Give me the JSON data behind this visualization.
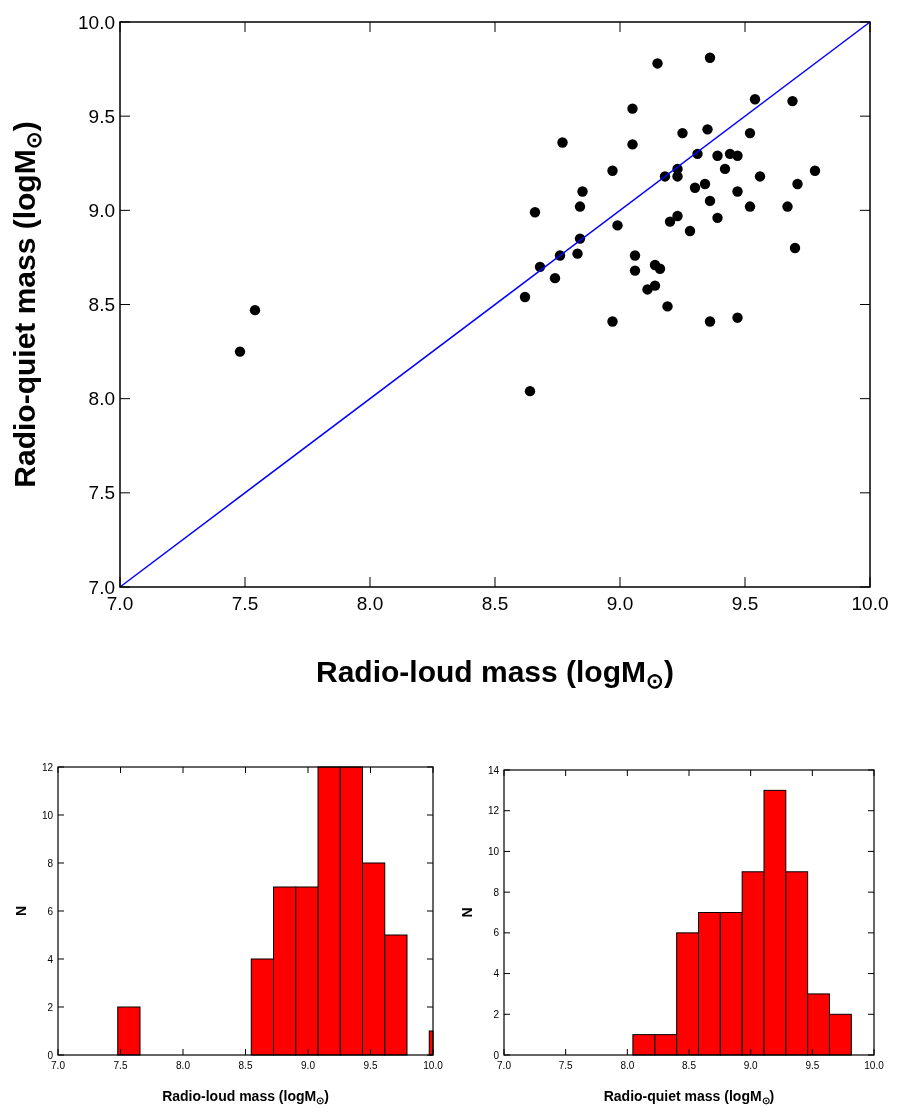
{
  "chart_data": [
    {
      "type": "scatter",
      "xlabel": "Radio-loud mass (logM$_{⊙}$)",
      "ylabel": "Radio-quiet mass (logM$_{⊙}$)",
      "xlim": [
        7,
        10
      ],
      "ylim": [
        7,
        10
      ],
      "xticks": [
        {
          "value": 7,
          "label": "7.0"
        },
        {
          "value": 7.5,
          "label": "7.5"
        },
        {
          "value": 8,
          "label": "8.0"
        },
        {
          "value": 8.5,
          "label": "8.5"
        },
        {
          "value": 9,
          "label": "9.0"
        },
        {
          "value": 9.5,
          "label": "9.5"
        },
        {
          "value": 10,
          "label": "10.0"
        }
      ],
      "yticks": [
        {
          "value": 7,
          "label": "7.0"
        },
        {
          "value": 7.5,
          "label": "7.5"
        },
        {
          "value": 8,
          "label": "8.0"
        },
        {
          "value": 8.5,
          "label": "8.5"
        },
        {
          "value": 9,
          "label": "9.0"
        },
        {
          "value": 9.5,
          "label": "9.5"
        },
        {
          "value": 10,
          "label": "10.0"
        }
      ],
      "grid": false,
      "series": [
        {
          "type": "scatter",
          "color": "#000000",
          "marker": "circle",
          "x": [
            9.15,
            9.36,
            9.54,
            9.69,
            9.05,
            9.25,
            9.35,
            9.52,
            8.77,
            9.05,
            9.31,
            9.39,
            9.44,
            9.47,
            8.97,
            9.23,
            9.18,
            9.23,
            9.42,
            9.56,
            9.78,
            9.3,
            9.34,
            9.47,
            9.71,
            8.85,
            8.84,
            8.66,
            9.36,
            9.52,
            9.67,
            8.99,
            9.2,
            9.23,
            9.39,
            9.28,
            9.7,
            8.84,
            8.76,
            8.83,
            8.68,
            8.74,
            8.62,
            9.06,
            9.06,
            9.14,
            9.16,
            9.14,
            9.11,
            9.19,
            8.97,
            9.36,
            9.47,
            8.64,
            7.48,
            7.54
          ],
          "values": [
            9.78,
            9.81,
            9.59,
            9.58,
            9.54,
            9.41,
            9.43,
            9.41,
            9.36,
            9.35,
            9.3,
            9.29,
            9.3,
            9.29,
            9.21,
            9.22,
            9.18,
            9.18,
            9.22,
            9.18,
            9.21,
            9.12,
            9.14,
            9.1,
            9.14,
            9.1,
            9.02,
            8.99,
            9.05,
            9.02,
            9.02,
            8.92,
            8.94,
            8.97,
            8.96,
            8.89,
            8.8,
            8.85,
            8.76,
            8.77,
            8.7,
            8.64,
            8.54,
            8.76,
            8.68,
            8.71,
            8.69,
            8.6,
            8.58,
            8.49,
            8.41,
            8.41,
            8.43,
            8.04,
            8.25,
            8.47
          ]
        },
        {
          "type": "line",
          "color": "#0000ff",
          "x": [
            7,
            10
          ],
          "values": [
            7,
            10
          ],
          "line_style": "solid"
        }
      ]
    },
    {
      "type": "histogram",
      "xlabel": "Radio-loud mass (logM$_{⊙}$)",
      "ylabel": "N",
      "xlim": [
        7,
        10
      ],
      "ylim": [
        0,
        12
      ],
      "xticks": [
        {
          "value": 7,
          "label": "7.0"
        },
        {
          "value": 7.5,
          "label": "7.5"
        },
        {
          "value": 8,
          "label": "8.0"
        },
        {
          "value": 8.5,
          "label": "8.5"
        },
        {
          "value": 9,
          "label": "9.0"
        },
        {
          "value": 9.5,
          "label": "9.5"
        },
        {
          "value": 10,
          "label": "10.0"
        }
      ],
      "yticks": [
        0,
        2,
        4,
        6,
        8,
        10,
        12
      ],
      "grid": false,
      "color": "#ff0000",
      "bins": [
        7.478,
        7.656,
        8.546,
        8.724,
        8.902,
        9.08,
        9.258,
        9.436,
        9.614,
        9.792,
        9.97,
        10.0
      ],
      "values": [
        2,
        0,
        4,
        7,
        7,
        12,
        12,
        8,
        5,
        0,
        1
      ]
    },
    {
      "type": "histogram",
      "xlabel": "Radio-quiet mass (logM$_{⊙}$)",
      "ylabel": "N",
      "xlim": [
        7,
        10
      ],
      "ylim": [
        0,
        14
      ],
      "xticks": [
        {
          "value": 7,
          "label": "7.0"
        },
        {
          "value": 7.5,
          "label": "7.5"
        },
        {
          "value": 8,
          "label": "8.0"
        },
        {
          "value": 8.5,
          "label": "8.5"
        },
        {
          "value": 9,
          "label": "9.0"
        },
        {
          "value": 9.5,
          "label": "9.5"
        },
        {
          "value": 10,
          "label": "10.0"
        }
      ],
      "yticks": [
        0,
        2,
        4,
        6,
        8,
        10,
        12,
        14
      ],
      "grid": false,
      "color": "#ff0000",
      "bins": [
        8.045,
        8.223,
        8.4,
        8.577,
        8.754,
        8.931,
        9.108,
        9.285,
        9.462,
        9.639,
        9.816
      ],
      "values": [
        1,
        1,
        6,
        7,
        7,
        9,
        13,
        9,
        3,
        2
      ]
    }
  ]
}
